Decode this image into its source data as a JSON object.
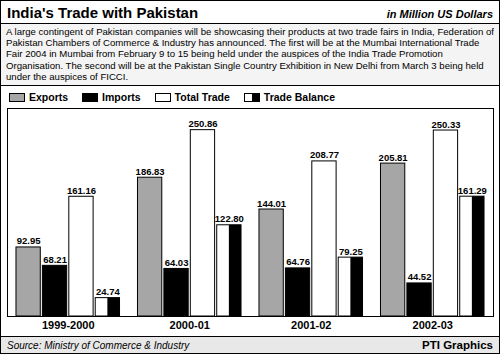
{
  "chart_data": {
    "type": "bar",
    "title": "India's Trade with Pakistan",
    "subtitle": "in Million US Dollars",
    "caption": "A large contingent of Pakistan companies will be showcasing their products at two trade fairs in India, Federation of Pakistan Chambers of Commerce & Industry has announced. The first will be at the Mumbai International Trade Fair 2004 in Mumbai from February 9 to 15 being held under the auspices of the India Trade Promotion Organisation. The second will be at the Pakistan Single Country Exhibition in New Delhi from March 3 being held under the auspices of FICCI.",
    "source": "Source: Ministry of Commerce & Industry",
    "credit": "PTI Graphics",
    "categories": [
      "1999-2000",
      "2000-01",
      "2001-02",
      "2002-03"
    ],
    "series": [
      {
        "name": "Exports",
        "color": "#a6a6a6",
        "values": [
          92.95,
          186.83,
          144.01,
          205.81
        ]
      },
      {
        "name": "Imports",
        "color": "#000000",
        "values": [
          68.21,
          64.03,
          64.76,
          44.52
        ]
      },
      {
        "name": "Total Trade",
        "color": "#ffffff",
        "values": [
          161.16,
          250.86,
          208.77,
          250.33
        ]
      },
      {
        "name": "Trade Balance",
        "color": "#000000",
        "marker": "half",
        "values": [
          24.74,
          122.8,
          79.25,
          161.29
        ],
        "value_labels": [
          "24.74",
          "122.80",
          "79.25",
          "161.29"
        ]
      }
    ],
    "ylim": [
      0,
      280
    ],
    "legend": "top-left",
    "data_labels": true,
    "tick_labels": "x",
    "grid": false
  }
}
